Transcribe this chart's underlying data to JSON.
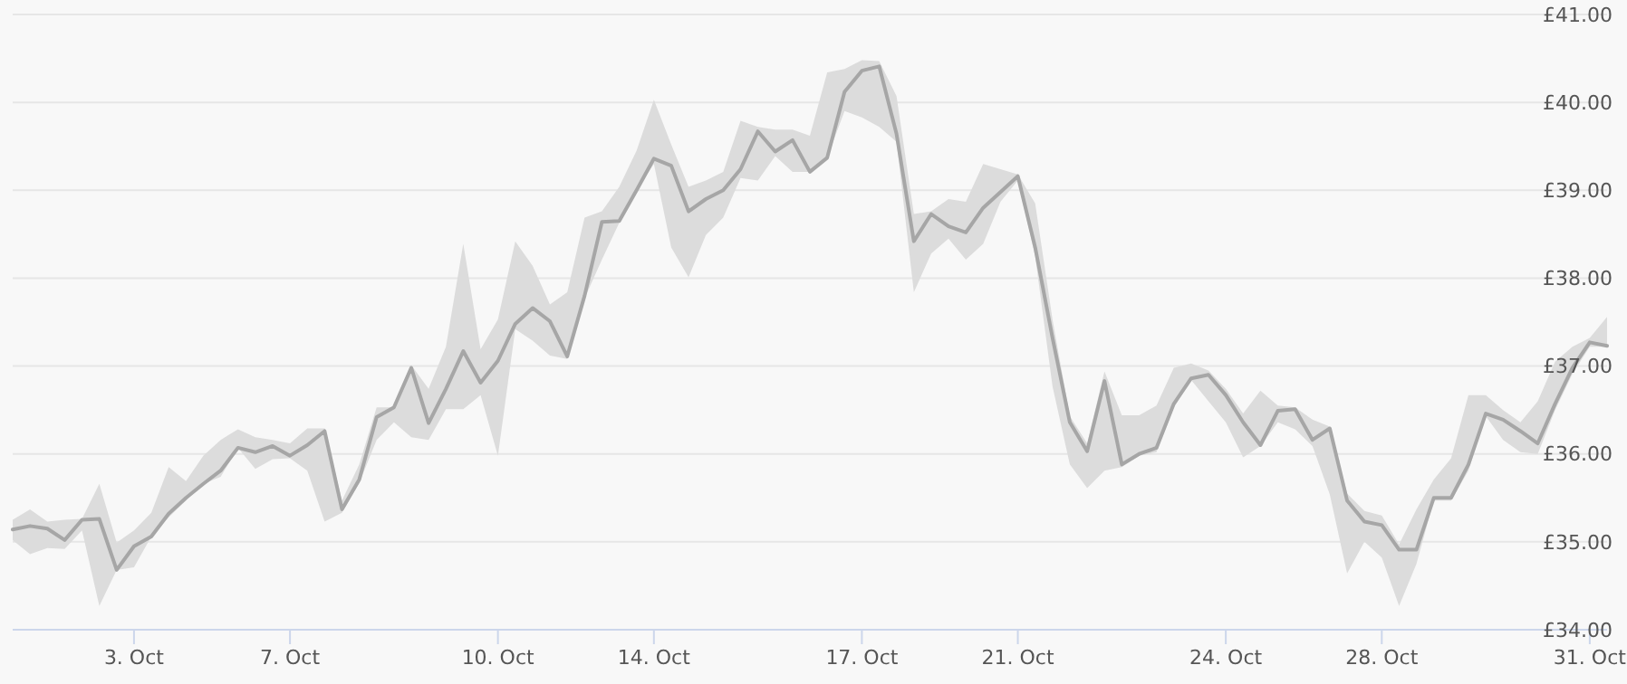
{
  "chart_data": {
    "type": "line",
    "categories": [
      null,
      null,
      null,
      null,
      null,
      null,
      null,
      "3. Oct",
      null,
      null,
      null,
      null,
      null,
      null,
      null,
      null,
      "7. Oct",
      null,
      null,
      null,
      null,
      null,
      null,
      null,
      null,
      null,
      null,
      null,
      "10. Oct",
      null,
      null,
      null,
      null,
      null,
      null,
      null,
      null,
      "14. Oct",
      null,
      null,
      null,
      null,
      null,
      null,
      null,
      null,
      null,
      null,
      null,
      "17. Oct",
      null,
      null,
      null,
      null,
      null,
      null,
      null,
      null,
      "21. Oct",
      null,
      null,
      null,
      null,
      null,
      null,
      null,
      null,
      null,
      null,
      null,
      "24. Oct",
      null,
      null,
      null,
      null,
      null,
      null,
      null,
      null,
      "28. Oct",
      null,
      null,
      null,
      null,
      null,
      null,
      null,
      null,
      null,
      null,
      null,
      "31. Oct",
      null
    ],
    "series": [
      {
        "color": "#a6a6a6",
        "values": [
          35.14,
          35.18,
          35.15,
          35.02,
          35.25,
          35.26,
          34.68,
          34.95,
          35.06,
          35.32,
          35.5,
          35.66,
          35.81,
          36.07,
          36.02,
          36.09,
          35.98,
          36.1,
          36.26,
          35.37,
          35.71,
          36.42,
          36.53,
          36.98,
          36.35,
          36.74,
          37.17,
          36.81,
          37.06,
          37.48,
          37.66,
          37.51,
          37.11,
          37.8,
          38.64,
          38.65,
          39.0,
          39.36,
          39.28,
          38.76,
          38.9,
          39.0,
          39.24,
          39.67,
          39.44,
          39.57,
          39.21,
          39.37,
          40.12,
          40.36,
          40.41,
          39.64,
          38.42,
          38.73,
          38.59,
          38.52,
          38.8,
          38.98,
          39.16,
          38.35,
          37.32,
          36.36,
          36.03,
          36.83,
          35.88,
          36.0,
          36.07,
          36.57,
          36.86,
          36.9,
          36.67,
          36.36,
          36.1,
          36.49,
          36.51,
          36.16,
          36.29,
          35.47,
          35.23,
          35.19,
          34.91,
          34.91,
          35.5,
          35.5,
          35.88,
          36.46,
          36.39,
          36.26,
          36.12,
          36.57,
          36.98,
          37.27,
          37.23
        ],
        "upper": [
          35.25,
          35.37,
          35.23,
          35.25,
          35.26,
          35.66,
          34.99,
          35.13,
          35.33,
          35.85,
          35.69,
          35.98,
          36.16,
          36.28,
          36.19,
          36.16,
          36.12,
          36.29,
          36.29,
          35.47,
          35.88,
          36.53,
          36.53,
          37.01,
          36.74,
          37.22,
          38.39,
          37.19,
          37.53,
          38.42,
          38.14,
          37.7,
          37.84,
          38.69,
          38.76,
          39.04,
          39.45,
          40.03,
          39.52,
          39.04,
          39.11,
          39.21,
          39.79,
          39.72,
          39.69,
          39.69,
          39.62,
          40.34,
          40.38,
          40.48,
          40.47,
          40.07,
          38.73,
          38.76,
          38.9,
          38.87,
          39.3,
          39.24,
          39.18,
          38.85,
          37.53,
          36.43,
          36.12,
          36.94,
          36.44,
          36.44,
          36.55,
          36.98,
          37.03,
          36.95,
          36.74,
          36.46,
          36.72,
          36.55,
          36.53,
          36.39,
          36.31,
          35.55,
          35.35,
          35.3,
          34.97,
          35.37,
          35.71,
          35.95,
          36.67,
          36.67,
          36.5,
          36.36,
          36.6,
          37.05,
          37.22,
          37.32,
          37.56
        ],
        "lower": [
          35.02,
          34.86,
          34.93,
          34.92,
          35.13,
          34.27,
          34.68,
          34.71,
          35.06,
          35.28,
          35.47,
          35.66,
          35.74,
          36.07,
          35.83,
          35.94,
          35.95,
          35.81,
          35.23,
          35.33,
          35.67,
          36.16,
          36.36,
          36.19,
          36.16,
          36.51,
          36.51,
          36.67,
          35.98,
          37.42,
          37.29,
          37.12,
          37.08,
          37.77,
          38.21,
          38.63,
          39.0,
          39.3,
          38.35,
          38.01,
          38.49,
          38.69,
          39.14,
          39.11,
          39.39,
          39.21,
          39.21,
          39.37,
          39.9,
          39.83,
          39.72,
          39.55,
          37.84,
          38.28,
          38.45,
          38.21,
          38.39,
          38.87,
          39.11,
          38.25,
          36.77,
          35.88,
          35.61,
          35.81,
          35.85,
          35.98,
          36.02,
          36.53,
          36.84,
          36.6,
          36.36,
          35.96,
          36.09,
          36.36,
          36.28,
          36.09,
          35.54,
          34.64,
          35.0,
          34.82,
          34.27,
          34.75,
          35.47,
          35.47,
          35.81,
          36.43,
          36.16,
          36.02,
          36.0,
          36.5,
          36.91,
          37.22,
          37.22
        ]
      }
    ],
    "ylim": [
      34,
      41
    ],
    "yticks": [
      {
        "value": 34,
        "label": "£34.00"
      },
      {
        "value": 35,
        "label": "£35.00"
      },
      {
        "value": 36,
        "label": "£36.00"
      },
      {
        "value": 37,
        "label": "£37.00"
      },
      {
        "value": 38,
        "label": "£38.00"
      },
      {
        "value": 39,
        "label": "£39.00"
      },
      {
        "value": 40,
        "label": "£40.00"
      },
      {
        "value": 41,
        "label": "£41.00"
      }
    ],
    "grid": "y",
    "marker": "none",
    "line_style": "solid"
  }
}
